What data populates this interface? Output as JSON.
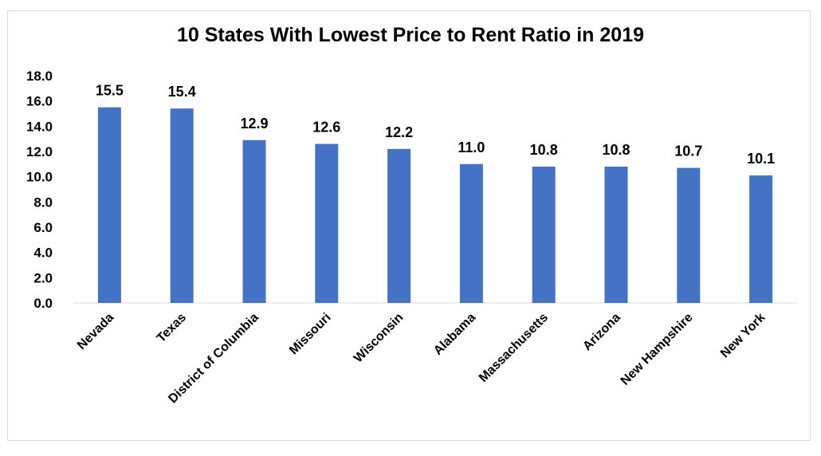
{
  "chart_data": {
    "type": "bar",
    "title": "10 States With Lowest Price to Rent Ratio in 2019",
    "xlabel": "",
    "ylabel": "",
    "categories": [
      "Nevada",
      "Texas",
      "District of Columbia",
      "Missouri",
      "Wisconsin",
      "Alabama",
      "Massachusetts",
      "Arizona",
      "New Hampshire",
      "New York"
    ],
    "values": [
      15.5,
      15.4,
      12.9,
      12.6,
      12.2,
      11.0,
      10.8,
      10.8,
      10.7,
      10.1
    ],
    "data_labels": [
      "15.5",
      "15.4",
      "12.9",
      "12.6",
      "12.2",
      "11.0",
      "10.8",
      "10.8",
      "10.7",
      "10.1"
    ],
    "ylim": [
      0,
      18
    ],
    "y_ticks": [
      "0.0",
      "2.0",
      "4.0",
      "6.0",
      "8.0",
      "10.0",
      "12.0",
      "14.0",
      "16.0",
      "18.0"
    ],
    "grid": false,
    "legend": "none",
    "bar_color": "#4472c4",
    "axis_color": "#d9d9d9"
  }
}
